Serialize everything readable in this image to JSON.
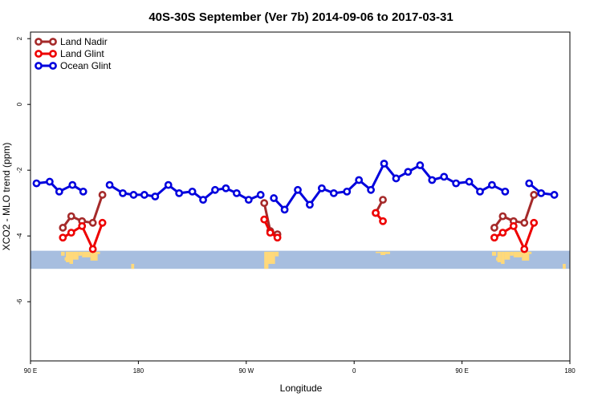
{
  "chart_data": {
    "type": "line",
    "title": "40S-30S September (Ver 7b)   2014-09-06 to 2017-03-31",
    "xlabel": "Longitude",
    "ylabel": "XCO2 - MLO trend (ppm)",
    "xlim": [
      90,
      540
    ],
    "ylim": [
      -7.8,
      2.2
    ],
    "x_ticks": [
      {
        "value": 90,
        "label": "90 E"
      },
      {
        "value": 180,
        "label": "180"
      },
      {
        "value": 270,
        "label": "90 W"
      },
      {
        "value": 360,
        "label": "0"
      },
      {
        "value": 450,
        "label": "90 E"
      },
      {
        "value": 540,
        "label": "180"
      }
    ],
    "y_ticks": [
      {
        "value": 2,
        "label": "2"
      },
      {
        "value": 0,
        "label": "0"
      },
      {
        "value": -2,
        "label": "-2"
      },
      {
        "value": -4,
        "label": "-4"
      },
      {
        "value": -6,
        "label": "-6"
      }
    ],
    "legend_position": "top-left",
    "map_strip": {
      "y_range": [
        -5.0,
        -4.45
      ],
      "ocean_color": "#a7bedf",
      "land_color": "#ffd97a",
      "land_regions": [
        [
          115.5,
          118.5,
          -4.48,
          -4.6
        ],
        [
          118.5,
          119.5,
          -4.65,
          -4.75
        ],
        [
          119.5,
          122.5,
          -4.48,
          -4.8
        ],
        [
          122.5,
          125.5,
          -4.48,
          -4.85
        ],
        [
          125.5,
          130,
          -4.48,
          -4.72
        ],
        [
          130,
          133,
          -4.48,
          -4.6
        ],
        [
          133,
          140,
          -4.48,
          -4.65
        ],
        [
          140,
          146,
          -4.48,
          -4.75
        ],
        [
          145,
          148,
          -4.48,
          -4.55
        ],
        [
          174,
          176.5,
          -4.85,
          -5.0
        ],
        [
          285,
          288.5,
          -4.48,
          -5.0
        ],
        [
          288,
          294,
          -4.48,
          -4.85
        ],
        [
          294,
          297,
          -4.48,
          -4.62
        ],
        [
          378,
          382,
          -4.48,
          -4.52
        ],
        [
          382,
          386,
          -4.48,
          -4.58
        ],
        [
          386,
          390,
          -4.48,
          -4.55
        ],
        [
          475,
          478.5,
          -4.48,
          -4.6
        ],
        [
          478.5,
          479.5,
          -4.65,
          -4.75
        ],
        [
          479.5,
          482.5,
          -4.48,
          -4.8
        ],
        [
          482.5,
          485.5,
          -4.48,
          -4.85
        ],
        [
          485.5,
          490,
          -4.48,
          -4.72
        ],
        [
          490,
          493,
          -4.48,
          -4.6
        ],
        [
          493,
          500,
          -4.48,
          -4.65
        ],
        [
          500,
          506,
          -4.48,
          -4.75
        ],
        [
          505,
          508,
          -4.48,
          -4.55
        ],
        [
          534,
          536.5,
          -4.85,
          -5.0
        ]
      ]
    },
    "series": [
      {
        "name": "Land Nadir",
        "color": "#a52a2a",
        "segments": [
          [
            [
              117,
              -3.75
            ],
            [
              124,
              -3.4
            ],
            [
              133,
              -3.55
            ],
            [
              142,
              -3.6
            ],
            [
              150,
              -2.75
            ]
          ],
          [
            [
              285,
              -3.0
            ],
            [
              290,
              -3.85
            ],
            [
              296,
              -3.95
            ]
          ],
          [
            [
              378,
              -3.3
            ],
            [
              384,
              -2.9
            ]
          ],
          [
            [
              477,
              -3.75
            ],
            [
              484,
              -3.4
            ],
            [
              493,
              -3.55
            ],
            [
              502,
              -3.6
            ],
            [
              510,
              -2.75
            ]
          ]
        ]
      },
      {
        "name": "Land Glint",
        "color": "#ee0000",
        "segments": [
          [
            [
              117,
              -4.05
            ],
            [
              124,
              -3.9
            ],
            [
              133,
              -3.7
            ],
            [
              142,
              -4.4
            ],
            [
              150,
              -3.6
            ]
          ],
          [
            [
              285,
              -3.5
            ],
            [
              290,
              -3.9
            ],
            [
              296,
              -4.05
            ]
          ],
          [
            [
              378,
              -3.3
            ],
            [
              384,
              -3.55
            ]
          ],
          [
            [
              477,
              -4.05
            ],
            [
              484,
              -3.9
            ],
            [
              493,
              -3.7
            ],
            [
              502,
              -4.4
            ],
            [
              510,
              -3.6
            ]
          ]
        ]
      },
      {
        "name": "Ocean Glint",
        "color": "#0000dd",
        "segments": [
          [
            [
              95,
              -2.4
            ],
            [
              106,
              -2.35
            ],
            [
              114,
              -2.65
            ],
            [
              125,
              -2.45
            ],
            [
              134,
              -2.65
            ]
          ],
          [
            [
              156,
              -2.45
            ],
            [
              167,
              -2.7
            ],
            [
              176,
              -2.75
            ],
            [
              185,
              -2.75
            ],
            [
              194,
              -2.8
            ],
            [
              205,
              -2.45
            ],
            [
              214,
              -2.7
            ],
            [
              225,
              -2.65
            ],
            [
              234,
              -2.9
            ],
            [
              244,
              -2.6
            ],
            [
              253,
              -2.55
            ],
            [
              262,
              -2.7
            ],
            [
              272,
              -2.9
            ],
            [
              282,
              -2.75
            ]
          ],
          [
            [
              293,
              -2.85
            ],
            [
              302,
              -3.2
            ],
            [
              313,
              -2.6
            ],
            [
              323,
              -3.05
            ],
            [
              333,
              -2.55
            ],
            [
              343,
              -2.7
            ],
            [
              354,
              -2.65
            ],
            [
              364,
              -2.3
            ],
            [
              374,
              -2.6
            ],
            [
              385,
              -1.8
            ],
            [
              395,
              -2.25
            ],
            [
              405,
              -2.05
            ],
            [
              415,
              -1.85
            ],
            [
              425,
              -2.3
            ],
            [
              435,
              -2.2
            ],
            [
              445,
              -2.4
            ],
            [
              456,
              -2.35
            ],
            [
              465,
              -2.65
            ],
            [
              475,
              -2.45
            ],
            [
              486,
              -2.65
            ]
          ],
          [
            [
              506,
              -2.4
            ],
            [
              516,
              -2.7
            ],
            [
              527,
              -2.75
            ]
          ]
        ]
      }
    ]
  }
}
